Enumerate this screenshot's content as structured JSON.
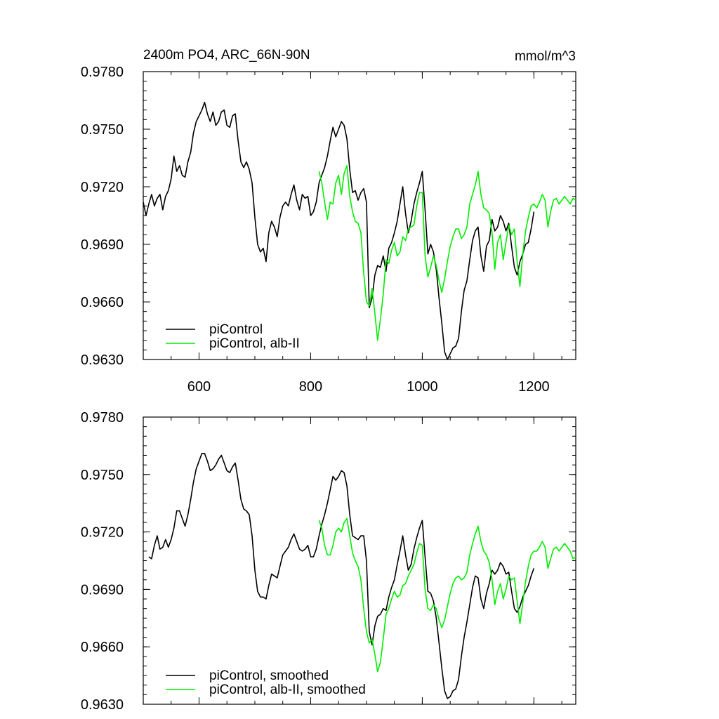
{
  "chart_data": [
    {
      "type": "line",
      "title": "2400m PO4, ARC_66N-90N",
      "units": "mmol/m^3",
      "xlim": [
        500,
        1275
      ],
      "ylim": [
        0.963,
        0.978
      ],
      "x_ticks": [
        "600",
        "800",
        "1000",
        "1200"
      ],
      "y_ticks": [
        "0.9780",
        "0.9750",
        "0.9720",
        "0.9690",
        "0.9660",
        "0.9630"
      ],
      "grid": false,
      "legend_position": "bottom-left",
      "series": [
        {
          "name": "piControl",
          "color": "#000000",
          "x": [
            500,
            505,
            510,
            515,
            520,
            525,
            530,
            535,
            540,
            545,
            550,
            555,
            560,
            565,
            570,
            575,
            580,
            585,
            590,
            595,
            600,
            605,
            610,
            615,
            620,
            625,
            630,
            635,
            640,
            645,
            650,
            655,
            660,
            665,
            670,
            675,
            680,
            685,
            690,
            695,
            700,
            705,
            710,
            715,
            720,
            725,
            730,
            735,
            740,
            745,
            750,
            755,
            760,
            765,
            770,
            775,
            780,
            785,
            790,
            795,
            800,
            805,
            810,
            815,
            820,
            825,
            830,
            835,
            840,
            845,
            850,
            855,
            860,
            865,
            870,
            875,
            880,
            885,
            890,
            895,
            900,
            905,
            910,
            915,
            920,
            925,
            930,
            935,
            940,
            945,
            950,
            955,
            960,
            965,
            970,
            975,
            980,
            985,
            990,
            995,
            1000,
            1005,
            1010,
            1015,
            1020,
            1025,
            1030,
            1035,
            1040,
            1045,
            1050,
            1055,
            1060,
            1065,
            1070,
            1075,
            1080,
            1085,
            1090,
            1095,
            1100,
            1105,
            1110,
            1115,
            1120,
            1125,
            1130,
            1135,
            1140,
            1145,
            1150,
            1155,
            1160,
            1165,
            1170,
            1175,
            1180,
            1185,
            1190,
            1195,
            1200
          ],
          "values": [
            0.9712,
            0.9705,
            0.9711,
            0.9716,
            0.971,
            0.9714,
            0.9716,
            0.9708,
            0.9715,
            0.9718,
            0.9724,
            0.9736,
            0.9728,
            0.9731,
            0.9726,
            0.9725,
            0.9733,
            0.9738,
            0.9748,
            0.9754,
            0.9757,
            0.976,
            0.9764,
            0.9758,
            0.9754,
            0.9759,
            0.9752,
            0.9754,
            0.9759,
            0.976,
            0.9752,
            0.9751,
            0.9757,
            0.9758,
            0.9744,
            0.9733,
            0.973,
            0.9733,
            0.9729,
            0.9722,
            0.9704,
            0.969,
            0.9686,
            0.9688,
            0.9681,
            0.9696,
            0.9702,
            0.9699,
            0.9694,
            0.9704,
            0.971,
            0.9712,
            0.971,
            0.9716,
            0.9721,
            0.9713,
            0.9708,
            0.9716,
            0.9714,
            0.9715,
            0.9705,
            0.9707,
            0.9712,
            0.9722,
            0.9726,
            0.973,
            0.9736,
            0.9744,
            0.9751,
            0.9746,
            0.975,
            0.9754,
            0.9752,
            0.9745,
            0.9729,
            0.9717,
            0.9718,
            0.9713,
            0.9717,
            0.9719,
            0.9712,
            0.9657,
            0.9662,
            0.9674,
            0.9679,
            0.9678,
            0.9684,
            0.9676,
            0.9688,
            0.9691,
            0.9696,
            0.9702,
            0.9711,
            0.972,
            0.9706,
            0.9696,
            0.9702,
            0.9711,
            0.9717,
            0.9722,
            0.9728,
            0.9708,
            0.9685,
            0.969,
            0.9686,
            0.9677,
            0.9662,
            0.9649,
            0.9634,
            0.963,
            0.9633,
            0.9636,
            0.9637,
            0.9641,
            0.9655,
            0.9666,
            0.9671,
            0.9682,
            0.9692,
            0.9697,
            0.9699,
            0.9684,
            0.9676,
            0.9689,
            0.9692,
            0.9703,
            0.9697,
            0.9699,
            0.9705,
            0.9702,
            0.9697,
            0.9701,
            0.9689,
            0.9678,
            0.9674,
            0.9681,
            0.9685,
            0.969,
            0.9691,
            0.9698,
            0.9707
          ]
        },
        {
          "name": "piControl, alb-II",
          "color": "#00ee00",
          "x": [
            815,
            820,
            825,
            830,
            835,
            840,
            845,
            850,
            855,
            860,
            865,
            870,
            875,
            880,
            885,
            890,
            895,
            900,
            905,
            910,
            915,
            920,
            925,
            930,
            935,
            940,
            945,
            950,
            955,
            960,
            965,
            970,
            975,
            980,
            985,
            990,
            995,
            1000,
            1005,
            1010,
            1015,
            1020,
            1025,
            1030,
            1035,
            1040,
            1045,
            1050,
            1055,
            1060,
            1065,
            1070,
            1075,
            1080,
            1085,
            1090,
            1095,
            1100,
            1105,
            1110,
            1115,
            1120,
            1125,
            1130,
            1135,
            1140,
            1145,
            1150,
            1155,
            1160,
            1165,
            1170,
            1175,
            1180,
            1185,
            1190,
            1195,
            1200,
            1205,
            1210,
            1215,
            1220,
            1225,
            1230,
            1235,
            1240,
            1245,
            1250,
            1255,
            1260,
            1265,
            1270,
            1275
          ],
          "values": [
            0.9728,
            0.9722,
            0.9712,
            0.9703,
            0.9712,
            0.9711,
            0.9722,
            0.9726,
            0.9716,
            0.9727,
            0.9731,
            0.9715,
            0.9707,
            0.9702,
            0.9701,
            0.9696,
            0.9675,
            0.966,
            0.9658,
            0.9667,
            0.9654,
            0.964,
            0.9651,
            0.9664,
            0.9682,
            0.968,
            0.9687,
            0.9691,
            0.9684,
            0.9686,
            0.9694,
            0.9692,
            0.9698,
            0.9699,
            0.97,
            0.971,
            0.9717,
            0.9717,
            0.9684,
            0.9673,
            0.9678,
            0.9684,
            0.9679,
            0.9671,
            0.9665,
            0.9672,
            0.9681,
            0.9689,
            0.9694,
            0.9698,
            0.9698,
            0.9693,
            0.9695,
            0.9699,
            0.9711,
            0.9716,
            0.9721,
            0.9728,
            0.9716,
            0.9709,
            0.9708,
            0.9706,
            0.9696,
            0.9677,
            0.9691,
            0.9695,
            0.9682,
            0.9691,
            0.97,
            0.9695,
            0.9698,
            0.9681,
            0.9668,
            0.9685,
            0.9697,
            0.9704,
            0.971,
            0.9711,
            0.9709,
            0.9712,
            0.9716,
            0.9713,
            0.9699,
            0.9707,
            0.9713,
            0.9714,
            0.9711,
            0.9713,
            0.9715,
            0.9713,
            0.9711,
            0.9714,
            0.9713
          ]
        }
      ]
    },
    {
      "type": "line",
      "xlim": [
        500,
        1275
      ],
      "ylim": [
        0.963,
        0.978
      ],
      "y_ticks": [
        "0.9780",
        "0.9750",
        "0.9720",
        "0.9690",
        "0.9660",
        "0.9630"
      ],
      "grid": false,
      "legend_position": "bottom-left",
      "series": [
        {
          "name": "piControl, smoothed",
          "color": "#000000",
          "x": [
            510,
            515,
            520,
            525,
            530,
            535,
            540,
            545,
            550,
            555,
            560,
            565,
            570,
            575,
            580,
            585,
            590,
            595,
            600,
            605,
            610,
            615,
            620,
            625,
            630,
            635,
            640,
            645,
            650,
            655,
            660,
            665,
            670,
            675,
            680,
            685,
            690,
            695,
            700,
            705,
            710,
            715,
            720,
            725,
            730,
            735,
            740,
            745,
            750,
            755,
            760,
            765,
            770,
            775,
            780,
            785,
            790,
            795,
            800,
            805,
            810,
            815,
            820,
            825,
            830,
            835,
            840,
            845,
            850,
            855,
            860,
            865,
            870,
            875,
            880,
            885,
            890,
            895,
            900,
            905,
            910,
            915,
            920,
            925,
            930,
            935,
            940,
            945,
            950,
            955,
            960,
            965,
            970,
            975,
            980,
            985,
            990,
            995,
            1000,
            1005,
            1010,
            1015,
            1020,
            1025,
            1030,
            1035,
            1040,
            1045,
            1050,
            1055,
            1060,
            1065,
            1070,
            1075,
            1080,
            1085,
            1090,
            1095,
            1100,
            1105,
            1110,
            1115,
            1120,
            1125,
            1130,
            1135,
            1140,
            1145,
            1150,
            1155,
            1160,
            1165,
            1170,
            1175,
            1180,
            1185,
            1190,
            1195,
            1200
          ],
          "values": [
            0.9707,
            0.9706,
            0.9713,
            0.9718,
            0.9711,
            0.9712,
            0.9716,
            0.9712,
            0.9716,
            0.9722,
            0.9731,
            0.9731,
            0.9727,
            0.9723,
            0.9729,
            0.9737,
            0.9746,
            0.9753,
            0.9757,
            0.9761,
            0.9761,
            0.9757,
            0.9752,
            0.9753,
            0.9755,
            0.9758,
            0.976,
            0.9756,
            0.9752,
            0.9751,
            0.9754,
            0.9756,
            0.9747,
            0.9737,
            0.9732,
            0.9731,
            0.9729,
            0.9718,
            0.97,
            0.9689,
            0.9686,
            0.9686,
            0.9685,
            0.9692,
            0.9698,
            0.9697,
            0.9696,
            0.9702,
            0.9708,
            0.971,
            0.9712,
            0.9716,
            0.9719,
            0.9715,
            0.9711,
            0.971,
            0.9711,
            0.9713,
            0.9707,
            0.9707,
            0.9711,
            0.9718,
            0.9724,
            0.9729,
            0.9735,
            0.9742,
            0.9749,
            0.9747,
            0.9749,
            0.9752,
            0.9751,
            0.9744,
            0.9729,
            0.9718,
            0.9717,
            0.9716,
            0.9718,
            0.9718,
            0.9705,
            0.9668,
            0.9661,
            0.9671,
            0.9676,
            0.9677,
            0.968,
            0.9679,
            0.9686,
            0.9691,
            0.9695,
            0.9703,
            0.971,
            0.9718,
            0.9708,
            0.97,
            0.9703,
            0.9711,
            0.9717,
            0.9722,
            0.9726,
            0.9707,
            0.9689,
            0.9688,
            0.9684,
            0.9675,
            0.9662,
            0.9649,
            0.9637,
            0.9633,
            0.9634,
            0.9637,
            0.9638,
            0.9643,
            0.9655,
            0.9665,
            0.9673,
            0.9682,
            0.9691,
            0.9697,
            0.9696,
            0.9685,
            0.968,
            0.9688,
            0.9693,
            0.97,
            0.9698,
            0.97,
            0.9704,
            0.9702,
            0.9698,
            0.9699,
            0.9689,
            0.968,
            0.9678,
            0.9681,
            0.9686,
            0.9689,
            0.9692,
            0.9697,
            0.9701
          ]
        },
        {
          "name": "piControl, alb-II, smoothed",
          "color": "#00ee00",
          "x": [
            815,
            820,
            825,
            830,
            835,
            840,
            845,
            850,
            855,
            860,
            865,
            870,
            875,
            880,
            885,
            890,
            895,
            900,
            905,
            910,
            915,
            920,
            925,
            930,
            935,
            940,
            945,
            950,
            955,
            960,
            965,
            970,
            975,
            980,
            985,
            990,
            995,
            1000,
            1005,
            1010,
            1015,
            1020,
            1025,
            1030,
            1035,
            1040,
            1045,
            1050,
            1055,
            1060,
            1065,
            1070,
            1075,
            1080,
            1085,
            1090,
            1095,
            1100,
            1105,
            1110,
            1115,
            1120,
            1125,
            1130,
            1135,
            1140,
            1145,
            1150,
            1155,
            1160,
            1165,
            1170,
            1175,
            1180,
            1185,
            1190,
            1195,
            1200,
            1205,
            1210,
            1215,
            1220,
            1225,
            1230,
            1235,
            1240,
            1245,
            1250,
            1255,
            1260,
            1265,
            1270,
            1275
          ],
          "values": [
            0.9726,
            0.9722,
            0.9713,
            0.9708,
            0.9708,
            0.9713,
            0.972,
            0.9722,
            0.972,
            0.9725,
            0.9727,
            0.9718,
            0.9709,
            0.9705,
            0.9702,
            0.9695,
            0.968,
            0.9668,
            0.9662,
            0.9664,
            0.9656,
            0.9647,
            0.9652,
            0.9664,
            0.9677,
            0.968,
            0.9685,
            0.9689,
            0.9686,
            0.9687,
            0.9692,
            0.9693,
            0.9697,
            0.97,
            0.9703,
            0.9709,
            0.9714,
            0.9713,
            0.969,
            0.968,
            0.9679,
            0.9682,
            0.968,
            0.9674,
            0.967,
            0.9674,
            0.9681,
            0.9688,
            0.9693,
            0.9696,
            0.9697,
            0.9695,
            0.9696,
            0.9699,
            0.9708,
            0.9714,
            0.9719,
            0.9723,
            0.9715,
            0.971,
            0.9708,
            0.9704,
            0.9695,
            0.9682,
            0.9689,
            0.9693,
            0.9685,
            0.969,
            0.9697,
            0.9695,
            0.9696,
            0.9684,
            0.9672,
            0.9683,
            0.9694,
            0.9702,
            0.9708,
            0.971,
            0.971,
            0.9712,
            0.9715,
            0.9712,
            0.9701,
            0.9706,
            0.9711,
            0.9712,
            0.971,
            0.9712,
            0.9714,
            0.9712,
            0.971,
            0.9706,
            0.9707
          ]
        }
      ]
    }
  ]
}
